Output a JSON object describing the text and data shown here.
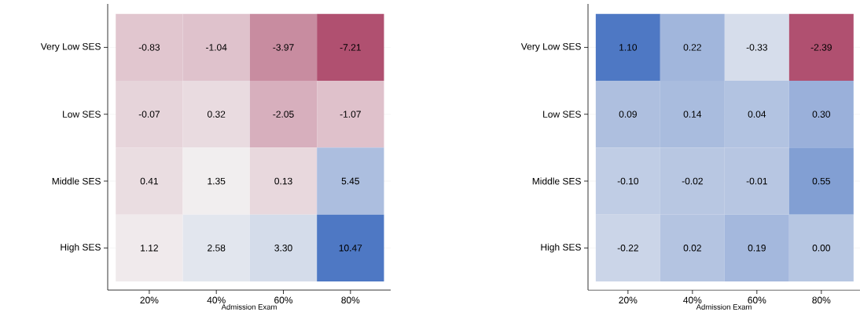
{
  "chart_data": [
    {
      "type": "heatmap",
      "xlabel": "Admission Exam",
      "grid": "y",
      "categories": [
        "20%",
        "40%",
        "60%",
        "80%"
      ],
      "y_categories": [
        "Very Low SES",
        "Low SES",
        "Middle SES",
        "High SES"
      ],
      "cells": [
        [
          -0.83,
          -1.04,
          -3.97,
          -7.21
        ],
        [
          -0.07,
          0.32,
          -2.05,
          -1.07
        ],
        [
          0.41,
          1.35,
          0.13,
          5.45
        ],
        [
          1.12,
          2.58,
          3.3,
          10.47
        ]
      ],
      "cell_labels": [
        [
          "-0.83",
          "-1.04",
          "-3.97",
          "-7.21"
        ],
        [
          "-0.07",
          "0.32",
          "-2.05",
          "-1.07"
        ],
        [
          "0.41",
          "1.35",
          "0.13",
          "5.45"
        ],
        [
          "1.12",
          "2.58",
          "3.30",
          "10.47"
        ]
      ]
    },
    {
      "type": "heatmap",
      "xlabel": "Admission Exam",
      "grid": "y",
      "categories": [
        "20%",
        "40%",
        "60%",
        "80%"
      ],
      "y_categories": [
        "Very Low SES",
        "Low SES",
        "Middle SES",
        "High SES"
      ],
      "cells": [
        [
          1.1,
          0.22,
          -0.33,
          -2.39
        ],
        [
          0.09,
          0.14,
          0.04,
          0.3
        ],
        [
          -0.1,
          -0.02,
          -0.01,
          0.55
        ],
        [
          -0.22,
          0.02,
          0.19,
          0.0
        ]
      ],
      "cell_labels": [
        [
          "1.10",
          "0.22",
          "-0.33",
          "-2.39"
        ],
        [
          "0.09",
          "0.14",
          "0.04",
          "0.30"
        ],
        [
          "-0.10",
          "-0.02",
          "-0.01",
          "0.55"
        ],
        [
          "-0.22",
          "0.02",
          "0.19",
          "0.00"
        ]
      ]
    }
  ]
}
